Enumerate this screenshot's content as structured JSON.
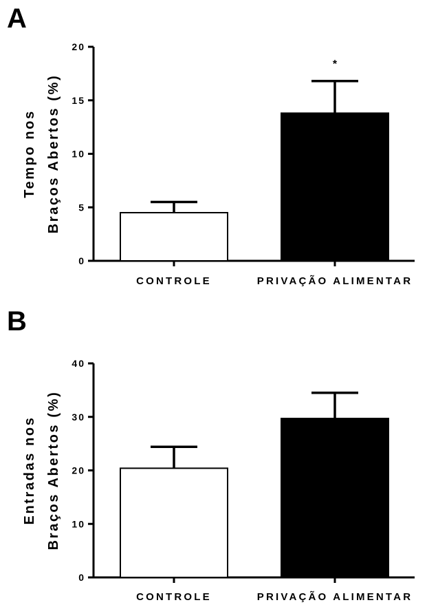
{
  "chart_data": [
    {
      "type": "bar",
      "panel": "A",
      "categories": [
        "CONTROLE",
        "PRIVAÇÃO ALIMENTAR"
      ],
      "values": [
        4.5,
        13.8
      ],
      "errors": [
        1.0,
        3.0
      ],
      "colors": [
        "#ffffff",
        "#000000"
      ],
      "ylabel": [
        "Tempo nos",
        "Braços Abertos (%)"
      ],
      "ylim": [
        0,
        20
      ],
      "yticks": [
        0,
        5,
        10,
        15,
        20
      ],
      "annotations": [
        "",
        "*"
      ]
    },
    {
      "type": "bar",
      "panel": "B",
      "categories": [
        "CONTROLE",
        "PRIVAÇÃO ALIMENTAR"
      ],
      "values": [
        20.4,
        29.7
      ],
      "errors": [
        4.0,
        4.8
      ],
      "colors": [
        "#ffffff",
        "#000000"
      ],
      "ylabel": [
        "Entradas nos",
        "Braços Abertos (%)"
      ],
      "ylim": [
        0,
        40
      ],
      "yticks": [
        0,
        10,
        20,
        30,
        40
      ],
      "annotations": [
        "",
        ""
      ]
    }
  ]
}
